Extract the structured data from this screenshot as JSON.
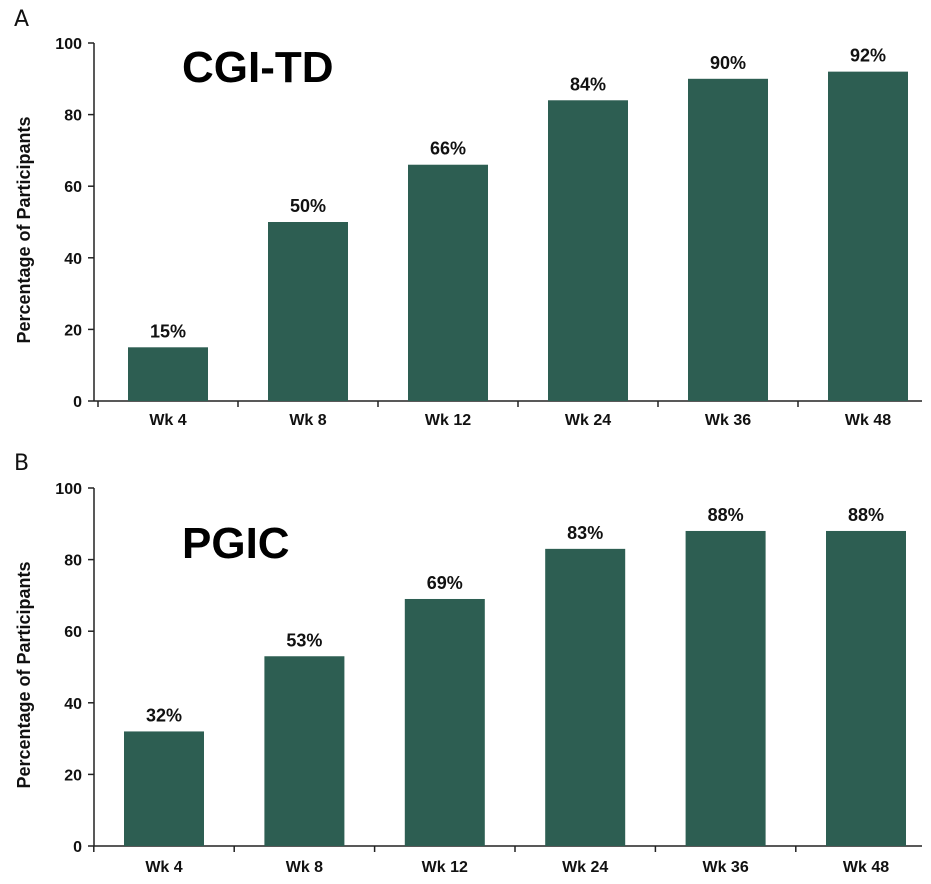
{
  "colors": {
    "bar": "#2d5e52",
    "axis": "#222222"
  },
  "chart_data": [
    {
      "type": "bar",
      "panel": "A",
      "title": "CGI-TD",
      "ylabel": "Percentage of Participants",
      "xlabel": "",
      "ylim": [
        0,
        100
      ],
      "yticks": [
        0,
        20,
        40,
        60,
        80,
        100
      ],
      "categories": [
        "Wk 4",
        "Wk 8",
        "Wk 12",
        "Wk 24",
        "Wk 36",
        "Wk 48"
      ],
      "values": [
        15,
        50,
        66,
        84,
        90,
        92
      ],
      "data_labels": [
        "15%",
        "50%",
        "66%",
        "84%",
        "90%",
        "92%"
      ],
      "grid": false,
      "legend": "none"
    },
    {
      "type": "bar",
      "panel": "B",
      "title": "PGIC",
      "ylabel": "Percentage of Participants",
      "xlabel": "",
      "ylim": [
        0,
        100
      ],
      "yticks": [
        0,
        20,
        40,
        60,
        80,
        100
      ],
      "categories": [
        "Wk 4",
        "Wk 8",
        "Wk 12",
        "Wk 24",
        "Wk 36",
        "Wk 48"
      ],
      "values": [
        32,
        53,
        69,
        83,
        88,
        88
      ],
      "data_labels": [
        "32%",
        "53%",
        "69%",
        "83%",
        "88%",
        "88%"
      ],
      "grid": false,
      "legend": "none"
    }
  ]
}
